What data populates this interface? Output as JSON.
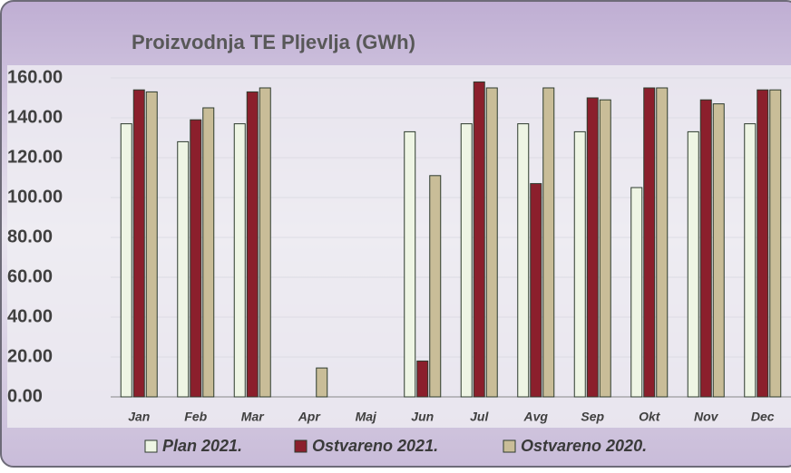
{
  "chart_data": {
    "type": "bar",
    "title": "Proizvodnja TE Pljevlja (GWh)",
    "categories": [
      "Jan",
      "Feb",
      "Mar",
      "Apr",
      "Maj",
      "Jun",
      "Jul",
      "Avg",
      "Sep",
      "Okt",
      "Nov",
      "Dec"
    ],
    "series": [
      {
        "name": "Plan 2021.",
        "color": "#eef5e4",
        "values": [
          137,
          128,
          137,
          null,
          null,
          133,
          137,
          137,
          133,
          105,
          133,
          137
        ]
      },
      {
        "name": "Ostvareno 2021.",
        "color": "#8b1f2c",
        "values": [
          154,
          139,
          153,
          null,
          null,
          18,
          158,
          107,
          150,
          155,
          149,
          154
        ]
      },
      {
        "name": "Ostvareno 2020.",
        "color": "#c9bd98",
        "values": [
          153,
          145,
          155,
          14.5,
          null,
          111,
          155,
          155,
          149,
          155,
          147,
          154
        ]
      }
    ],
    "ylim": [
      0,
      160
    ],
    "yticks": [
      {
        "value": 0,
        "label": "0.00"
      },
      {
        "value": 20,
        "label": "20.00"
      },
      {
        "value": 40,
        "label": "40.00"
      },
      {
        "value": 60,
        "label": "60.00"
      },
      {
        "value": 80,
        "label": "80.00"
      },
      {
        "value": 100,
        "label": "100.00"
      },
      {
        "value": 120,
        "label": "120.00"
      },
      {
        "value": 140,
        "label": "140.00"
      },
      {
        "value": 160,
        "label": "160.00"
      }
    ],
    "grid": true,
    "legend": "bottom"
  }
}
